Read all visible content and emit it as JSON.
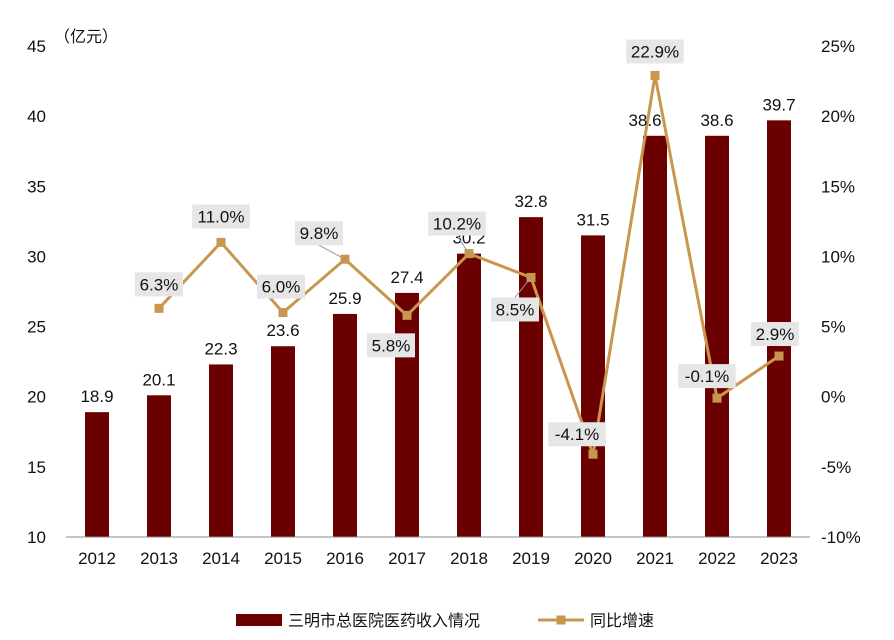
{
  "chart_data": {
    "type": "bar",
    "categories": [
      "2012",
      "2013",
      "2014",
      "2015",
      "2016",
      "2017",
      "2018",
      "2019",
      "2020",
      "2021",
      "2022",
      "2023"
    ],
    "y_unit": "（亿元）",
    "y_left_range": [
      10,
      45
    ],
    "y_left_ticks": [
      "10",
      "15",
      "20",
      "25",
      "30",
      "35",
      "40",
      "45"
    ],
    "y_right_range": [
      -10,
      25
    ],
    "y_right_ticks": [
      "-10%",
      "-5%",
      "0%",
      "5%",
      "10%",
      "15%",
      "20%",
      "25%"
    ],
    "series": [
      {
        "name": "三明市总医院医药收入情况",
        "type": "bar",
        "axis": "left",
        "color": "#6B0000",
        "values": [
          18.9,
          20.1,
          22.3,
          23.6,
          25.9,
          27.4,
          30.2,
          32.8,
          31.5,
          38.6,
          38.6,
          39.7
        ],
        "labels": [
          "18.9",
          "20.1",
          "22.3",
          "23.6",
          "25.9",
          "27.4",
          "30.2",
          "32.8",
          "31.5",
          "38.6",
          "38.6",
          "39.7"
        ]
      },
      {
        "name": "同比增速",
        "type": "line",
        "axis": "right",
        "color": "#C8964E",
        "values": [
          null,
          6.3,
          11.0,
          6.0,
          9.8,
          5.8,
          10.2,
          8.5,
          -4.1,
          22.9,
          -0.1,
          2.9
        ],
        "labels": [
          "",
          "6.3%",
          "11.0%",
          "6.0%",
          "9.8%",
          "5.8%",
          "10.2%",
          "8.5%",
          "-4.1%",
          "22.9%",
          "-0.1%",
          "2.9%"
        ]
      }
    ],
    "legend_position": "bottom",
    "grid": false
  }
}
